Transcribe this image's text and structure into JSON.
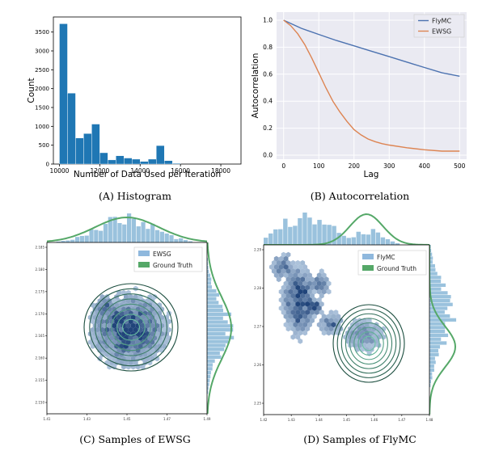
{
  "captions": {
    "a": "(A) Histogram",
    "b": "(B) Autocorrelation",
    "c": "(C) Samples of EWSG",
    "d": "(D) Samples of FlyMC"
  },
  "colors": {
    "hist_bar": "#1f77b4",
    "flymc": "#4c72b0",
    "ewsg": "#dd8452",
    "truth": "#55a868",
    "hex_light": "#c6dbef",
    "hex_dark": "#08306b",
    "contour_dark": "#1b4d3e",
    "contour_light": "#6cc3a4"
  },
  "chart_data": [
    {
      "type": "bar",
      "title": "",
      "xlabel": "Number of Data Used per Iteration",
      "ylabel": "Count",
      "xlim": [
        9700,
        19000
      ],
      "ylim": [
        0,
        3900
      ],
      "xticks": [
        10000,
        12000,
        14000,
        16000,
        18000
      ],
      "yticks": [
        0,
        500,
        1000,
        1500,
        2000,
        2500,
        3000,
        3500
      ],
      "bin_width": 400,
      "bin_starts": [
        10000,
        10400,
        10800,
        11200,
        11600,
        12000,
        12400,
        12800,
        13200,
        13600,
        14000,
        14400,
        14800,
        15200,
        15600
      ],
      "values": [
        3720,
        1880,
        690,
        810,
        1060,
        300,
        110,
        220,
        160,
        130,
        70,
        130,
        490,
        90,
        20
      ]
    },
    {
      "type": "line",
      "title": "",
      "xlabel": "Lag",
      "ylabel": "Autocorrelation",
      "xlim": [
        -20,
        520
      ],
      "ylim": [
        -0.03,
        1.06
      ],
      "xticks": [
        0,
        100,
        200,
        300,
        400,
        500
      ],
      "yticks": [
        0.0,
        0.2,
        0.4,
        0.6,
        0.8,
        1.0
      ],
      "grid": true,
      "legend": "top-right",
      "series": [
        {
          "name": "FlyMC",
          "x": [
            0,
            25,
            50,
            100,
            150,
            200,
            250,
            300,
            350,
            400,
            450,
            500
          ],
          "values": [
            1.0,
            0.97,
            0.94,
            0.895,
            0.85,
            0.81,
            0.77,
            0.73,
            0.69,
            0.65,
            0.61,
            0.585
          ]
        },
        {
          "name": "EWSG",
          "x": [
            0,
            20,
            40,
            60,
            80,
            100,
            120,
            140,
            160,
            180,
            200,
            220,
            240,
            260,
            280,
            300,
            350,
            400,
            450,
            500
          ],
          "values": [
            1.0,
            0.96,
            0.9,
            0.82,
            0.72,
            0.61,
            0.5,
            0.4,
            0.32,
            0.25,
            0.19,
            0.15,
            0.12,
            0.1,
            0.085,
            0.075,
            0.055,
            0.04,
            0.03,
            0.03
          ]
        }
      ]
    },
    {
      "type": "scatter",
      "title": "",
      "xticks": [
        "1.41",
        "1.43",
        "1.45",
        "1.47",
        "1.49"
      ],
      "yticks": [
        "2.185",
        "2.180",
        "2.175",
        "2.170",
        "2.165",
        "2.160",
        "2.155",
        "2.150"
      ],
      "legend": "top-right",
      "series": [
        {
          "name": "EWSG"
        },
        {
          "name": "Ground Truth"
        }
      ],
      "truth_center": [
        1.455,
        2.165
      ],
      "sample_center": [
        1.452,
        2.165
      ]
    },
    {
      "type": "scatter",
      "title": "",
      "xticks": [
        "1.42",
        "1.43",
        "1.44",
        "1.45",
        "1.46",
        "1.47",
        "1.48"
      ],
      "yticks": [
        "2.29",
        "2.28",
        "2.27",
        "2.26",
        "2.25"
      ],
      "legend": "top-right",
      "series": [
        {
          "name": "FlyMC"
        },
        {
          "name": "Ground Truth"
        }
      ],
      "truth_center": [
        1.465,
        2.265
      ],
      "sample_center": [
        1.435,
        2.275
      ]
    }
  ]
}
